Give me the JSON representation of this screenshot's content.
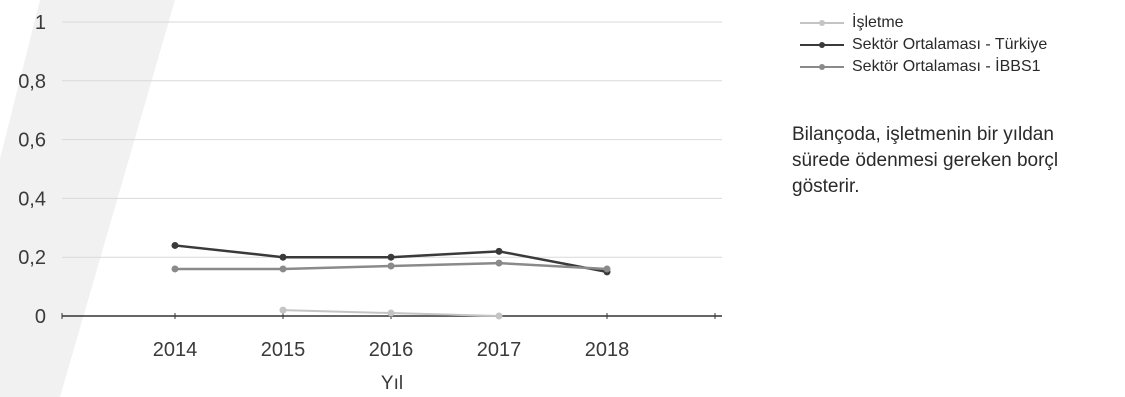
{
  "chart_data": {
    "type": "line",
    "categories": [
      "2014",
      "2015",
      "2016",
      "2017",
      "2018"
    ],
    "xlabel": "Yıl",
    "ylabel": "",
    "ylim": [
      0,
      1
    ],
    "yticks": [
      "0",
      "0,2",
      "0,4",
      "0,6",
      "0,8",
      "1"
    ],
    "grid": true,
    "legend_position": "right",
    "series": [
      {
        "name": "İşletme",
        "color": "#c4c4c4",
        "values": [
          null,
          0.02,
          0.01,
          0.0,
          null
        ]
      },
      {
        "name": "Sektör Ortalaması - Türkiye",
        "color": "#3a3a3a",
        "values": [
          0.24,
          0.2,
          0.2,
          0.22,
          0.15
        ]
      },
      {
        "name": "Sektör Ortalaması - İBBS1",
        "color": "#8a8a8a",
        "values": [
          0.16,
          0.16,
          0.17,
          0.18,
          0.16
        ]
      }
    ]
  },
  "note": {
    "lines": [
      "Bilançoda, işletmenin bir yıldan",
      "sürede ödenmesi gereken borçl",
      "gösterir."
    ]
  }
}
